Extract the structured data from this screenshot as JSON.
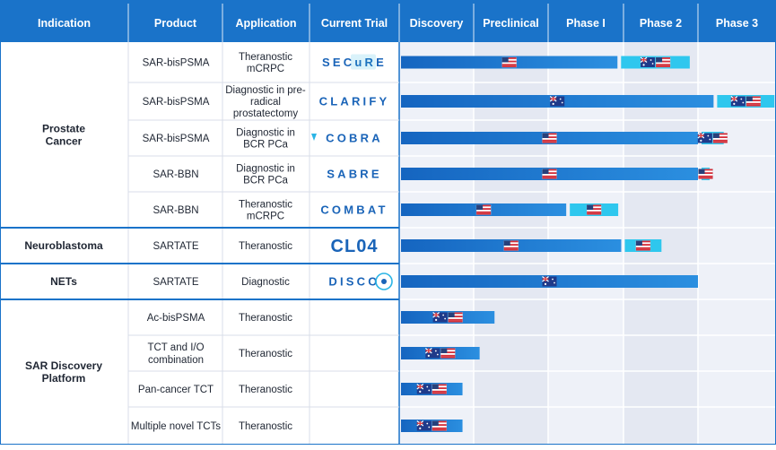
{
  "colors": {
    "header_bg": "#1a73c9",
    "header_text": "#ffffff",
    "left_bg": "#ffffff",
    "phase_col_a": "#eef1f8",
    "phase_col_b": "#e4e8f2",
    "grid_line": "#ffffff",
    "group_divider": "#1a73c9",
    "row_divider": "#d8dee9",
    "bar_start": "#1565c0",
    "bar_end": "#2b8fe0",
    "bar_light": "#2ec7ee",
    "body_text": "#1f2633",
    "trial_blue": "#1a64b8",
    "trial_cyan": "#2bb5e6"
  },
  "headers": {
    "indication": "Indication",
    "product": "Product",
    "application": "Application",
    "current_trial": "Current Trial",
    "phases": [
      "Discovery",
      "Preclinical",
      "Phase I",
      "Phase 2",
      "Phase 3"
    ]
  },
  "chart_data": {
    "type": "pipeline-gantt",
    "title": "",
    "stages": [
      "Discovery",
      "Preclinical",
      "Phase I",
      "Phase 2",
      "Phase 3"
    ],
    "groups": [
      {
        "indication": "Prostate Cancer",
        "label_lines": [
          "Prostate",
          "Cancer"
        ],
        "row_count": 5
      },
      {
        "indication": "Neuroblastoma",
        "label_lines": [
          "Neuroblastoma"
        ],
        "row_count": 1
      },
      {
        "indication": "NETs",
        "label_lines": [
          "NETs"
        ],
        "row_count": 1
      },
      {
        "indication": "SAR Discovery Platform",
        "label_lines": [
          "SAR Discovery",
          "Platform"
        ],
        "row_count": 4
      }
    ],
    "rows": [
      {
        "product": "SAR-bisPSMA",
        "application": [
          "Theranostic",
          "mCRPC"
        ],
        "trial": "SECuRE",
        "progress": 2.92,
        "progress_flags": [
          "US"
        ],
        "next_progress": 3.89,
        "next_flags": [
          "AU",
          "US"
        ]
      },
      {
        "product": "SAR-bisPSMA",
        "application": [
          "Diagnostic in pre-",
          "radical",
          "prostatectomy"
        ],
        "trial": "CLARIFY",
        "progress": 4.2,
        "progress_flags": [
          "AU"
        ],
        "next_progress": 4.98,
        "next_flags": [
          "AU",
          "US"
        ]
      },
      {
        "product": "SAR-bisPSMA",
        "application": [
          "Diagnostic in",
          "BCR PCa"
        ],
        "trial": "COBRA",
        "progress": 4.0,
        "progress_flags": [
          "US"
        ],
        "next_progress": 4.33,
        "next_flags": [
          "AU",
          "US"
        ]
      },
      {
        "product": "SAR-BBN",
        "application": [
          "Diagnostic in",
          "BCR PCa"
        ],
        "trial": "SABRE",
        "progress": 4.0,
        "progress_flags": [
          "US"
        ],
        "next_progress": 4.15,
        "next_flags": [
          "US"
        ]
      },
      {
        "product": "SAR-BBN",
        "application": [
          "Theranostic",
          "mCRPC"
        ],
        "trial": "COMBAT",
        "progress": 2.24,
        "progress_flags": [
          "US"
        ],
        "next_progress": 2.93,
        "next_flags": [
          "US"
        ]
      },
      {
        "product": "SARTATE",
        "application": [
          "Theranostic"
        ],
        "trial": "CL04",
        "progress": 2.97,
        "progress_flags": [
          "US"
        ],
        "next_progress": 3.51,
        "next_flags": [
          "US"
        ]
      },
      {
        "product": "SARTATE",
        "application": [
          "Diagnostic"
        ],
        "trial": "DISCO",
        "progress": 4.0,
        "progress_flags": [
          "AU"
        ],
        "next_progress": null,
        "next_flags": []
      },
      {
        "product": "Ac-bisPSMA",
        "application": [
          "Theranostic"
        ],
        "trial": "",
        "progress": 1.28,
        "progress_flags": [
          "AU",
          "US"
        ],
        "next_progress": null,
        "next_flags": []
      },
      {
        "product": "TCT and I/O combination",
        "product_lines": [
          "TCT and I/O",
          "combination"
        ],
        "application": [
          "Theranostic"
        ],
        "trial": "",
        "progress": 1.08,
        "progress_flags": [
          "AU",
          "US"
        ],
        "next_progress": null,
        "next_flags": []
      },
      {
        "product": "Pan-cancer TCT",
        "application": [
          "Theranostic"
        ],
        "trial": "",
        "progress": 0.85,
        "progress_flags": [
          "AU",
          "US"
        ],
        "next_progress": null,
        "next_flags": []
      },
      {
        "product": "Multiple novel TCTs",
        "application": [
          "Theranostic"
        ],
        "trial": "",
        "progress": 0.85,
        "progress_flags": [
          "AU",
          "US"
        ],
        "next_progress": null,
        "next_flags": []
      }
    ]
  }
}
